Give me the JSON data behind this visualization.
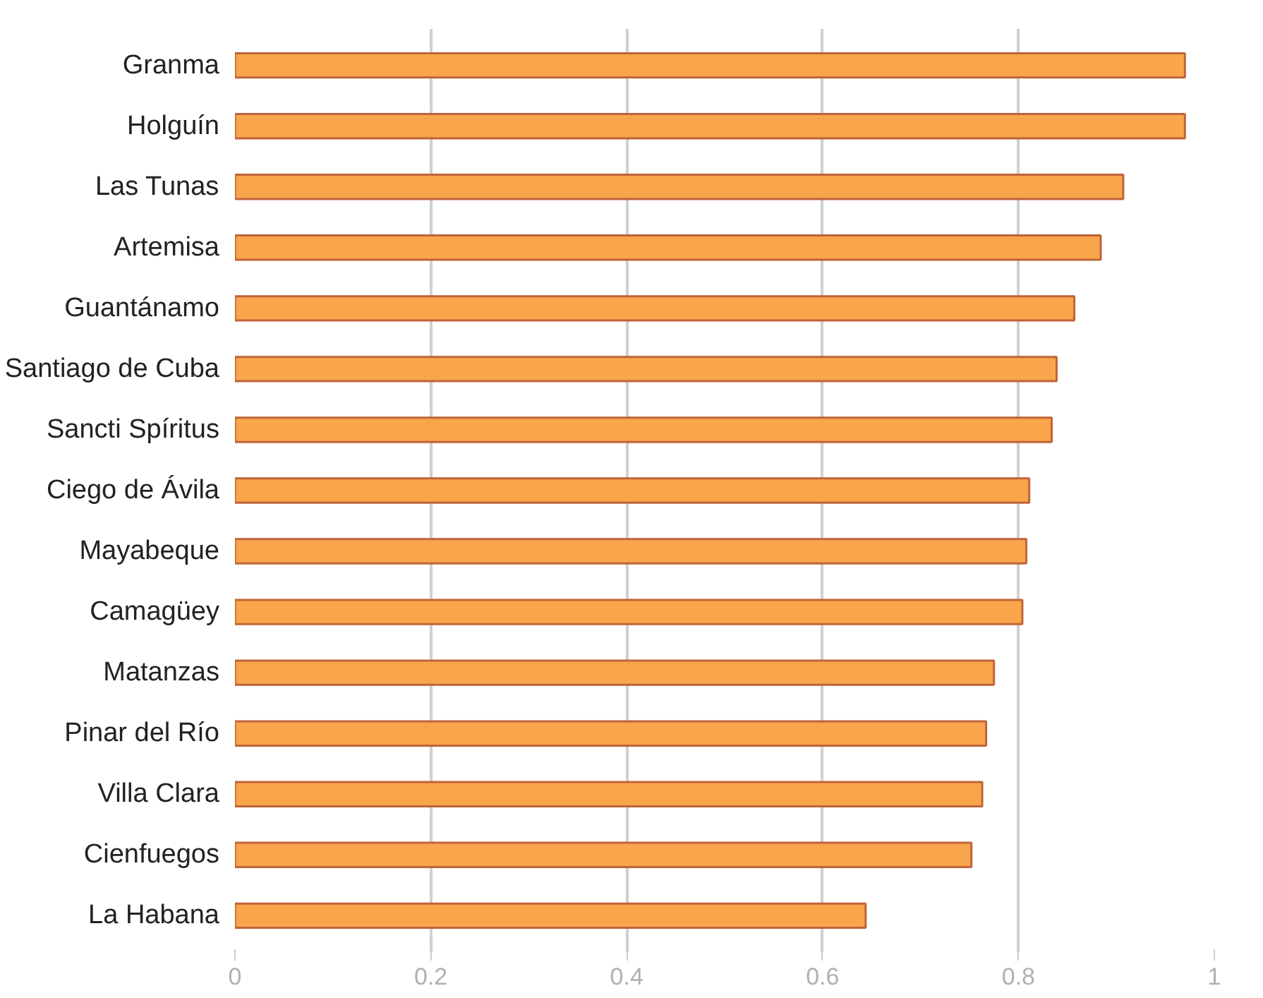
{
  "chart_data": {
    "type": "bar",
    "orientation": "horizontal",
    "categories": [
      "Granma",
      "Holguín",
      "Las Tunas",
      "Artemisa",
      "Guantánamo",
      "Santiago de Cuba",
      "Sancti Spíritus",
      "Ciego de Ávila",
      "Mayabeque",
      "Camagüey",
      "Matanzas",
      "Pinar del Río",
      "Villa Clara",
      "Cienfuegos",
      "La Habana"
    ],
    "values": [
      0.97,
      0.97,
      0.907,
      0.884,
      0.857,
      0.839,
      0.834,
      0.811,
      0.808,
      0.804,
      0.775,
      0.767,
      0.763,
      0.752,
      0.644
    ],
    "color": "#f9a54c",
    "xlim": [
      0,
      1
    ],
    "xticks": [
      0,
      0.2,
      0.4,
      0.6,
      0.8,
      1
    ],
    "grid": "x"
  }
}
